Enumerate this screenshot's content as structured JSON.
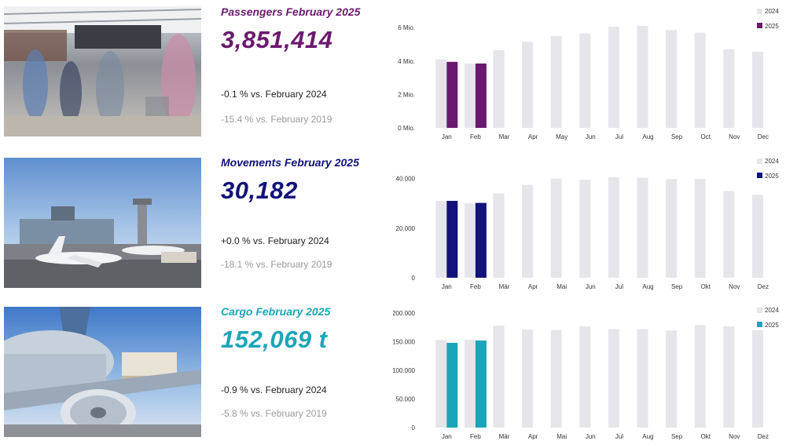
{
  "colors": {
    "bar_2024": "#e6e6ea",
    "passengers": "#6a1a6e",
    "movements": "#12127a",
    "cargo": "#1aa6b8"
  },
  "passengers": {
    "title": "Passengers February 2025",
    "value": "3,851,414",
    "cmp_prev": "-0.1 % vs. February 2024",
    "cmp_2019": "-15.4 % vs. February 2019",
    "image": "airport-terminal-crowd-photo"
  },
  "movements": {
    "title": "Movements February 2025",
    "value": "30,182",
    "cmp_prev": "+0.0 % vs. February 2024",
    "cmp_2019": "-18.1 % vs. February 2019",
    "image": "aircraft-on-apron-photo"
  },
  "cargo": {
    "title": "Cargo February 2025",
    "value": "152,069 t",
    "cmp_prev": "-0.9 % vs. February 2024",
    "cmp_2019": "-5.8 % vs. February 2019",
    "image": "cargo-aircraft-loading-photo"
  },
  "chart_data": [
    {
      "type": "bar",
      "categories": [
        "Jan",
        "Feb",
        "Mar",
        "Apr",
        "May",
        "Jun",
        "Jul",
        "Aug",
        "Sep",
        "Oct",
        "Nov",
        "Dec"
      ],
      "series": [
        {
          "name": "2024",
          "color": "#e6e6ea",
          "values": [
            4.1,
            3.85,
            4.65,
            5.15,
            5.5,
            5.65,
            6.05,
            6.1,
            5.85,
            5.7,
            4.7,
            4.55
          ]
        },
        {
          "name": "2025",
          "color": "#6a1a6e",
          "values": [
            3.95,
            3.85,
            null,
            null,
            null,
            null,
            null,
            null,
            null,
            null,
            null,
            null
          ]
        }
      ],
      "yticks": [
        0,
        2,
        4,
        6
      ],
      "ytick_labels": [
        "0 Mio.",
        "2 Mio.",
        "4 Mio.",
        "6 Mio."
      ],
      "ylim": [
        0,
        6.1
      ],
      "legend": "top-right"
    },
    {
      "type": "bar",
      "categories": [
        "Jan",
        "Feb",
        "Mär",
        "Apr",
        "Mai",
        "Jun",
        "Jul",
        "Aug",
        "Sep",
        "Okt",
        "Nov",
        "Dez"
      ],
      "series": [
        {
          "name": "2024",
          "color": "#e6e6ea",
          "values": [
            31000,
            30100,
            34000,
            37500,
            40000,
            39500,
            40500,
            40300,
            39800,
            39800,
            35000,
            33500
          ]
        },
        {
          "name": "2025",
          "color": "#12127a",
          "values": [
            31000,
            30182,
            null,
            null,
            null,
            null,
            null,
            null,
            null,
            null,
            null,
            null
          ]
        }
      ],
      "yticks": [
        0,
        20000,
        40000
      ],
      "ytick_labels": [
        "0",
        "20.000",
        "40.000"
      ],
      "ylim": [
        0,
        40500
      ],
      "legend": "top-right"
    },
    {
      "type": "bar",
      "categories": [
        "Jan",
        "Feb",
        "Mär",
        "Apr",
        "Mai",
        "Jun",
        "Jul",
        "Aug",
        "Sep",
        "Okt",
        "Nov",
        "Dez"
      ],
      "series": [
        {
          "name": "2024",
          "color": "#e6e6ea",
          "values": [
            153000,
            153500,
            178000,
            171000,
            170500,
            177000,
            172000,
            172000,
            169500,
            179000,
            177000,
            170000
          ]
        },
        {
          "name": "2025",
          "color": "#1aa6b8",
          "values": [
            148000,
            152069,
            null,
            null,
            null,
            null,
            null,
            null,
            null,
            null,
            null,
            null
          ]
        }
      ],
      "yticks": [
        0,
        50000,
        100000,
        150000,
        200000
      ],
      "ytick_labels": [
        "0",
        "50.000",
        "100.000",
        "150.000",
        "200.000"
      ],
      "ylim": [
        0,
        200000
      ],
      "legend": "top-right"
    }
  ]
}
